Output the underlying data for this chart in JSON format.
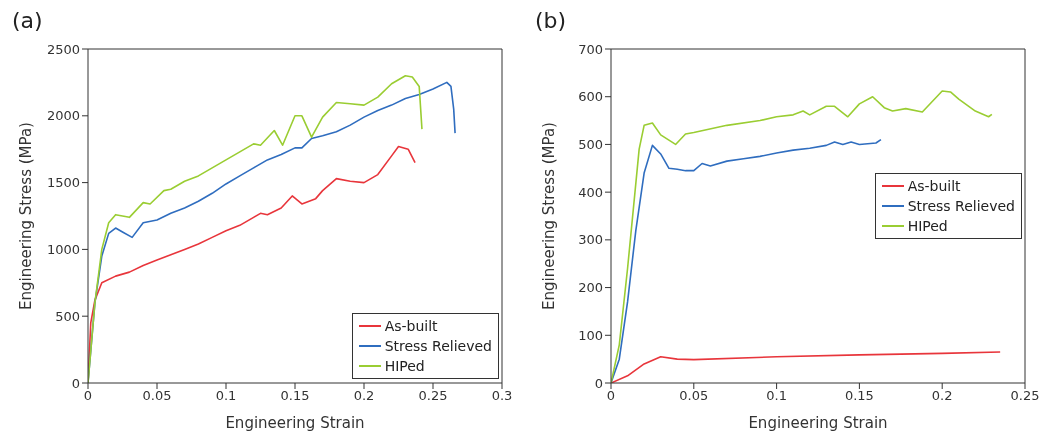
{
  "chart_data": [
    {
      "type": "line",
      "title": "(a)",
      "xlabel": "Engineering Strain",
      "ylabel": "Engineering Stress (MPa)",
      "xlim": [
        0,
        0.3
      ],
      "xticks": [
        0,
        0.05,
        0.1,
        0.15,
        0.2,
        0.25,
        0.3
      ],
      "ylim": [
        0,
        2500
      ],
      "yticks": [
        0,
        500,
        1000,
        1500,
        2000,
        2500
      ],
      "grid": false,
      "legend": "bottom right",
      "marker": "none",
      "line_style": "solid",
      "series": [
        {
          "name": "As-built",
          "color": "#e8353b",
          "x": [
            0,
            0.002,
            0.005,
            0.01,
            0.02,
            0.03,
            0.04,
            0.05,
            0.06,
            0.07,
            0.08,
            0.09,
            0.1,
            0.11,
            0.12,
            0.125,
            0.13,
            0.14,
            0.148,
            0.155,
            0.165,
            0.17,
            0.18,
            0.19,
            0.2,
            0.21,
            0.22,
            0.225,
            0.232,
            0.237
          ],
          "values": [
            0,
            450,
            620,
            750,
            800,
            830,
            880,
            920,
            960,
            1000,
            1040,
            1090,
            1140,
            1180,
            1240,
            1270,
            1260,
            1310,
            1400,
            1340,
            1380,
            1440,
            1530,
            1510,
            1500,
            1560,
            1700,
            1770,
            1750,
            1650
          ]
        },
        {
          "name": "Stress Relieved",
          "color": "#2f6dbf",
          "x": [
            0,
            0.005,
            0.01,
            0.015,
            0.02,
            0.025,
            0.032,
            0.04,
            0.05,
            0.06,
            0.07,
            0.08,
            0.09,
            0.1,
            0.11,
            0.12,
            0.13,
            0.14,
            0.15,
            0.155,
            0.162,
            0.17,
            0.18,
            0.19,
            0.2,
            0.21,
            0.22,
            0.23,
            0.24,
            0.25,
            0.26,
            0.263,
            0.265,
            0.266
          ],
          "values": [
            0,
            600,
            950,
            1120,
            1160,
            1130,
            1090,
            1200,
            1220,
            1270,
            1310,
            1360,
            1420,
            1490,
            1550,
            1610,
            1670,
            1710,
            1760,
            1760,
            1830,
            1850,
            1880,
            1930,
            1990,
            2040,
            2080,
            2130,
            2160,
            2200,
            2250,
            2220,
            2050,
            1870
          ]
        },
        {
          "name": "HIPed",
          "color": "#9acd32",
          "x": [
            0,
            0.005,
            0.01,
            0.015,
            0.02,
            0.03,
            0.04,
            0.045,
            0.055,
            0.06,
            0.07,
            0.08,
            0.09,
            0.1,
            0.11,
            0.12,
            0.125,
            0.135,
            0.141,
            0.15,
            0.155,
            0.162,
            0.17,
            0.18,
            0.19,
            0.2,
            0.21,
            0.22,
            0.23,
            0.235,
            0.24,
            0.242
          ],
          "values": [
            0,
            600,
            1000,
            1200,
            1260,
            1240,
            1350,
            1340,
            1440,
            1450,
            1510,
            1550,
            1610,
            1670,
            1730,
            1790,
            1780,
            1890,
            1780,
            2000,
            2000,
            1840,
            1990,
            2100,
            2090,
            2080,
            2140,
            2240,
            2300,
            2290,
            2220,
            1900
          ]
        }
      ]
    },
    {
      "type": "line",
      "title": "(b)",
      "xlabel": "Engineering Strain",
      "ylabel": "Engineering Stress (MPa)",
      "xlim": [
        0,
        0.25
      ],
      "xticks": [
        0,
        0.05,
        0.1,
        0.15,
        0.2,
        0.25
      ],
      "ylim": [
        0,
        700
      ],
      "yticks": [
        0,
        100,
        200,
        300,
        400,
        500,
        600,
        700
      ],
      "grid": false,
      "legend": "right",
      "marker": "none",
      "line_style": "solid",
      "series": [
        {
          "name": "As-built",
          "color": "#e8353b",
          "x": [
            0,
            0.01,
            0.02,
            0.03,
            0.04,
            0.05,
            0.1,
            0.15,
            0.2,
            0.235
          ],
          "values": [
            0,
            15,
            40,
            55,
            50,
            49,
            55,
            59,
            62,
            65
          ]
        },
        {
          "name": "Stress Relieved",
          "color": "#2f6dbf",
          "x": [
            0,
            0.005,
            0.01,
            0.015,
            0.02,
            0.025,
            0.03,
            0.035,
            0.04,
            0.045,
            0.05,
            0.055,
            0.06,
            0.07,
            0.08,
            0.09,
            0.1,
            0.11,
            0.12,
            0.13,
            0.135,
            0.14,
            0.145,
            0.15,
            0.16,
            0.163
          ],
          "values": [
            0,
            50,
            170,
            320,
            440,
            498,
            480,
            450,
            448,
            445,
            445,
            460,
            455,
            465,
            470,
            475,
            482,
            488,
            492,
            498,
            505,
            500,
            505,
            500,
            503,
            510
          ]
        },
        {
          "name": "HIPed",
          "color": "#9acd32",
          "x": [
            0,
            0.005,
            0.01,
            0.017,
            0.02,
            0.025,
            0.03,
            0.039,
            0.045,
            0.05,
            0.07,
            0.09,
            0.1,
            0.11,
            0.116,
            0.12,
            0.13,
            0.135,
            0.143,
            0.15,
            0.158,
            0.165,
            0.17,
            0.178,
            0.188,
            0.2,
            0.205,
            0.21,
            0.22,
            0.228,
            0.23
          ],
          "values": [
            0,
            80,
            240,
            490,
            540,
            545,
            520,
            500,
            522,
            525,
            540,
            550,
            558,
            562,
            570,
            562,
            580,
            580,
            558,
            585,
            600,
            577,
            570,
            575,
            568,
            612,
            610,
            595,
            570,
            558,
            563
          ]
        }
      ]
    }
  ]
}
